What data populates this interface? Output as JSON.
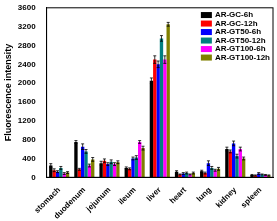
{
  "chart_data": {
    "type": "bar",
    "y_label": "Fluorescence intensity",
    "categories": [
      "stomach",
      "duodenum",
      "jejunum",
      "ileum",
      "liver",
      "heart",
      "lung",
      "kidney",
      "spleen"
    ],
    "series": [
      {
        "name": "AR-GC-6h",
        "color": "#000000",
        "values": [
          250,
          750,
          300,
          200,
          2050,
          120,
          130,
          600,
          50
        ],
        "errors": [
          40,
          30,
          40,
          20,
          60,
          20,
          20,
          40,
          10
        ]
      },
      {
        "name": "AR-GC-12h",
        "color": "#ff0000",
        "values": [
          150,
          170,
          350,
          180,
          2500,
          60,
          90,
          550,
          40
        ],
        "errors": [
          30,
          20,
          40,
          20,
          80,
          10,
          20,
          30,
          10
        ]
      },
      {
        "name": "AR-GT50-6h",
        "color": "#0000ff",
        "values": [
          120,
          650,
          280,
          400,
          2400,
          80,
          300,
          720,
          80
        ],
        "errors": [
          20,
          60,
          30,
          30,
          70,
          20,
          50,
          50,
          20
        ]
      },
      {
        "name": "AR-GT50-12h",
        "color": "#008080",
        "values": [
          200,
          550,
          330,
          420,
          2950,
          90,
          200,
          450,
          60
        ],
        "errors": [
          30,
          40,
          40,
          40,
          60,
          20,
          30,
          40,
          10
        ]
      },
      {
        "name": "AR-GT100-6h",
        "color": "#ff00ff",
        "values": [
          80,
          250,
          280,
          750,
          2500,
          60,
          150,
          600,
          50
        ],
        "errors": [
          20,
          30,
          30,
          30,
          80,
          10,
          20,
          40,
          10
        ]
      },
      {
        "name": "AR-GT100-12h",
        "color": "#808000",
        "values": [
          100,
          380,
          320,
          620,
          3250,
          90,
          180,
          400,
          40
        ],
        "errors": [
          20,
          40,
          30,
          40,
          40,
          20,
          30,
          30,
          10
        ]
      }
    ],
    "ylim": [
      0,
      3600
    ],
    "yticks": [
      0,
      400,
      800,
      1200,
      1600,
      2000,
      2400,
      2800,
      3200,
      3600
    ],
    "grid": false,
    "legend": "upper right"
  }
}
